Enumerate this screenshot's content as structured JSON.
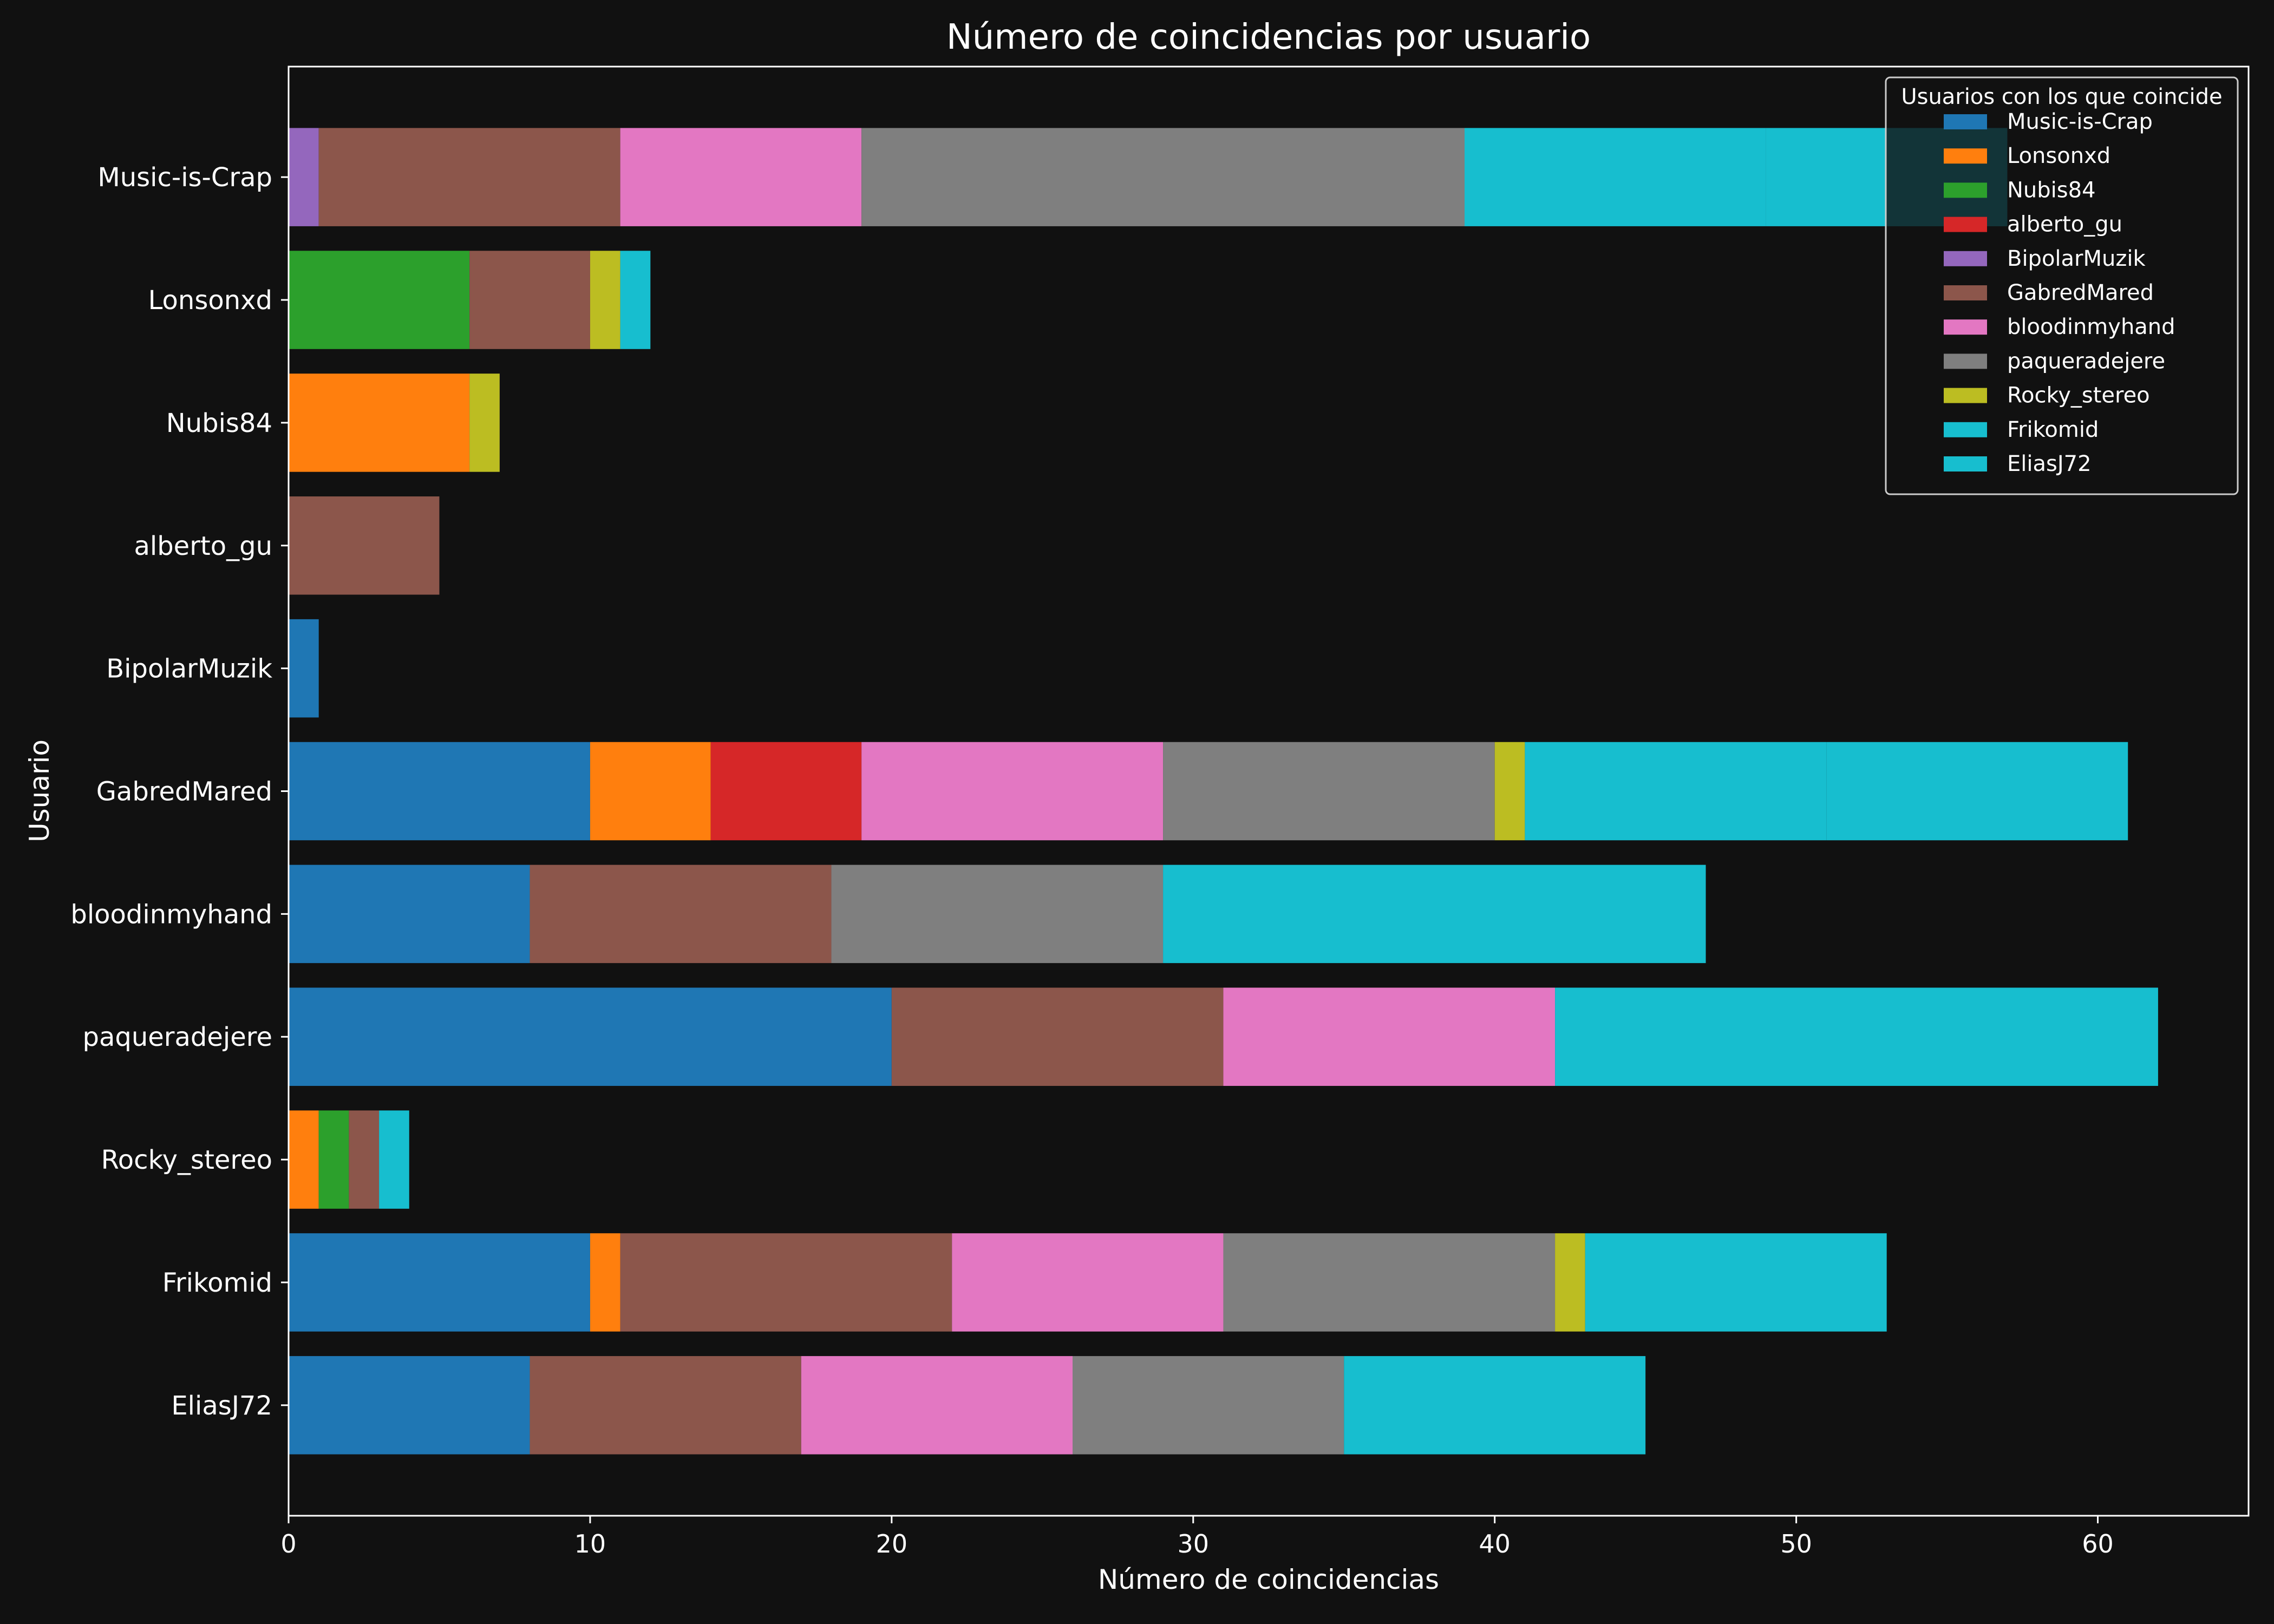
{
  "chart_data": {
    "type": "bar",
    "orientation": "horizontal",
    "stacked": true,
    "title": "Número de coincidencias por usuario",
    "xlabel": "Número de coincidencias",
    "ylabel": "Usuario",
    "xlim": [
      0,
      65
    ],
    "xticks": [
      0,
      10,
      20,
      30,
      40,
      50,
      60
    ],
    "grid": false,
    "background": "#111111",
    "legend": {
      "title": "Usuarios con los que coincide",
      "placement": "top-right"
    },
    "categories": [
      "Music-is-Crap",
      "Lonsonxd",
      "Nubis84",
      "alberto_gu",
      "BipolarMuzik",
      "GabredMared",
      "bloodinmyhand",
      "paqueradejere",
      "Rocky_stereo",
      "Frikomid",
      "EliasJ72"
    ],
    "series": [
      {
        "name": "Music-is-Crap",
        "color": "#1f77b4",
        "values": [
          0,
          0,
          0,
          0,
          1,
          10,
          8,
          20,
          0,
          10,
          8
        ]
      },
      {
        "name": "Lonsonxd",
        "color": "#ff7f0e",
        "values": [
          0,
          0,
          6,
          0,
          0,
          4,
          0,
          0,
          1,
          1,
          0
        ]
      },
      {
        "name": "Nubis84",
        "color": "#2ca02c",
        "values": [
          0,
          6,
          0,
          0,
          0,
          0,
          0,
          0,
          1,
          0,
          0
        ]
      },
      {
        "name": "alberto_gu",
        "color": "#d62728",
        "values": [
          0,
          0,
          0,
          0,
          0,
          5,
          0,
          0,
          0,
          0,
          0
        ]
      },
      {
        "name": "BipolarMuzik",
        "color": "#9467bd",
        "values": [
          1,
          0,
          0,
          0,
          0,
          0,
          0,
          0,
          0,
          0,
          0
        ]
      },
      {
        "name": "GabredMared",
        "color": "#8c564b",
        "values": [
          10,
          4,
          0,
          5,
          0,
          0,
          10,
          11,
          1,
          11,
          9
        ]
      },
      {
        "name": "bloodinmyhand",
        "color": "#e377c2",
        "values": [
          8,
          0,
          0,
          0,
          0,
          10,
          0,
          11,
          0,
          9,
          9
        ]
      },
      {
        "name": "paqueradejere",
        "color": "#7f7f7f",
        "values": [
          20,
          0,
          0,
          0,
          0,
          11,
          11,
          0,
          0,
          11,
          9
        ]
      },
      {
        "name": "Rocky_stereo",
        "color": "#bcbd22",
        "values": [
          0,
          1,
          1,
          0,
          0,
          1,
          0,
          0,
          0,
          1,
          0
        ]
      },
      {
        "name": "Frikomid",
        "color": "#17becf",
        "values": [
          10,
          1,
          0,
          0,
          0,
          10,
          18,
          10,
          1,
          0,
          10
        ]
      },
      {
        "name": "EliasJ72",
        "color": "#17becf",
        "values": [
          8,
          0,
          0,
          0,
          0,
          10,
          0,
          10,
          0,
          10,
          0
        ]
      }
    ]
  }
}
